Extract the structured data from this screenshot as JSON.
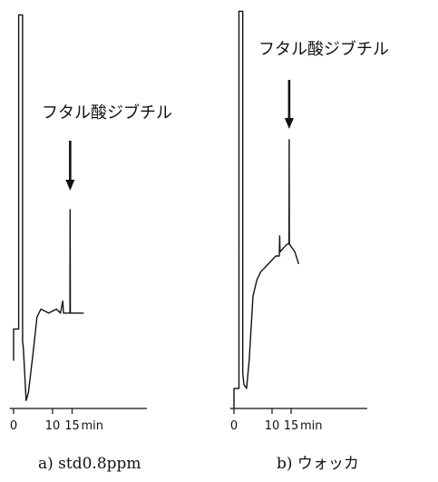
{
  "chart_data": [
    {
      "type": "line",
      "annotation": "フタル酸ジブチル",
      "caption": "a) std0.8ppm",
      "xlabel": "min",
      "xticks": [
        0,
        10,
        15
      ],
      "xlim": [
        -1,
        19
      ],
      "yaxis": "none",
      "points": [
        [
          0.0,
          0.12
        ],
        [
          0.0,
          0.2
        ],
        [
          1.3,
          0.2
        ],
        [
          1.3,
          0.99
        ],
        [
          2.3,
          0.99
        ],
        [
          2.3,
          0.17
        ],
        [
          2.5,
          0.15
        ],
        [
          3.2,
          0.02
        ],
        [
          3.8,
          0.04
        ],
        [
          5.0,
          0.14
        ],
        [
          6.0,
          0.23
        ],
        [
          7.0,
          0.25
        ],
        [
          9.0,
          0.24
        ],
        [
          11.0,
          0.25
        ],
        [
          12.0,
          0.24
        ],
        [
          12.6,
          0.27
        ],
        [
          12.8,
          0.24
        ],
        [
          14.3,
          0.24
        ],
        [
          14.45,
          0.24
        ],
        [
          14.5,
          0.5
        ],
        [
          14.55,
          0.24
        ],
        [
          16.0,
          0.24
        ],
        [
          18.0,
          0.24
        ]
      ],
      "arrow_at_min": 14.5
    },
    {
      "type": "line",
      "annotation": "フタル酸ジブチル",
      "caption": "b) ウォッカ",
      "xlabel": "min",
      "xticks": [
        0,
        10,
        15
      ],
      "xlim": [
        -1,
        19
      ],
      "yaxis": "none",
      "points": [
        [
          0.0,
          0.0
        ],
        [
          0.0,
          0.05
        ],
        [
          1.3,
          0.05
        ],
        [
          1.3,
          0.99
        ],
        [
          2.3,
          0.99
        ],
        [
          2.3,
          0.09
        ],
        [
          2.6,
          0.06
        ],
        [
          3.3,
          0.05
        ],
        [
          4.0,
          0.12
        ],
        [
          5.0,
          0.28
        ],
        [
          6.0,
          0.32
        ],
        [
          7.0,
          0.34
        ],
        [
          9.0,
          0.36
        ],
        [
          11.0,
          0.38
        ],
        [
          11.9,
          0.38
        ],
        [
          12.0,
          0.43
        ],
        [
          12.1,
          0.39
        ],
        [
          13.0,
          0.4
        ],
        [
          14.0,
          0.41
        ],
        [
          14.45,
          0.41
        ],
        [
          14.5,
          0.67
        ],
        [
          14.55,
          0.41
        ],
        [
          16.0,
          0.39
        ],
        [
          17.0,
          0.36
        ]
      ],
      "arrow_at_min": 14.5
    }
  ]
}
